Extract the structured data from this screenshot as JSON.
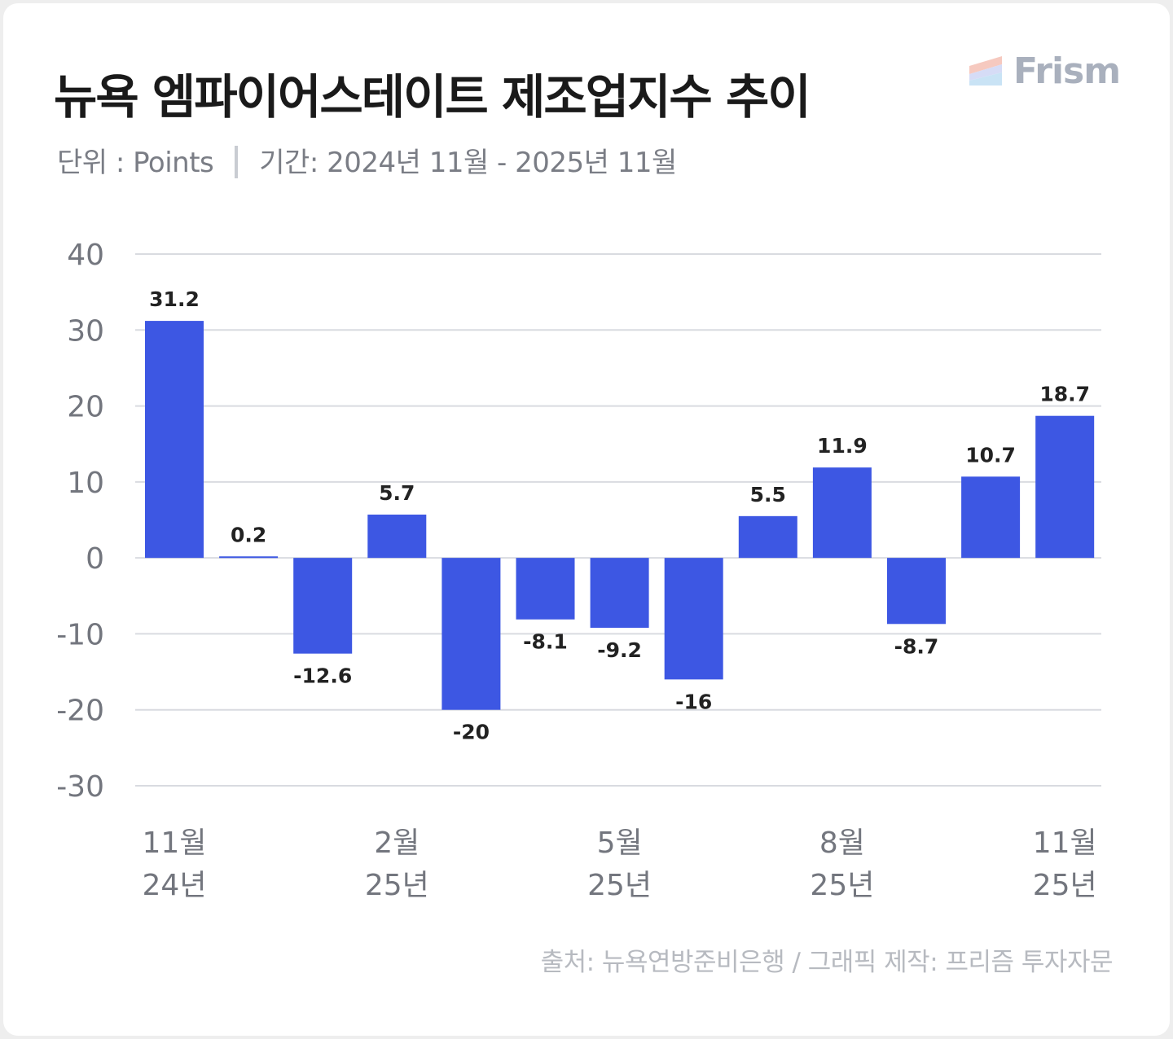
{
  "header": {
    "title": "뉴욕 엠파이어스테이트 제조업지수 추이",
    "unit": "단위 : Points",
    "period": "기간: 2024년 11월 - 2025년 11월"
  },
  "brand": {
    "logo_text": "Frism",
    "logo_icon": "stacked-stripes-icon"
  },
  "footer": {
    "source": "출처: 뉴욕연방준비은행 / 그래픽 제작: 프리즘 투자자문"
  },
  "colors": {
    "bar": "#3d57e3",
    "grid": "#d9dbe0",
    "axis_text": "#73767e",
    "label_text": "#222222"
  },
  "chart_data": {
    "type": "bar",
    "categories": [
      "2024-11",
      "2024-12",
      "2025-01",
      "2025-02",
      "2025-03",
      "2025-04",
      "2025-05",
      "2025-06",
      "2025-07",
      "2025-08",
      "2025-09",
      "2025-10",
      "2025-11"
    ],
    "values": [
      31.2,
      0.2,
      -12.6,
      5.7,
      -20,
      -8.1,
      -9.2,
      -16,
      5.5,
      11.9,
      -8.7,
      10.7,
      18.7
    ],
    "value_labels": [
      "31.2",
      "0.2",
      "-12.6",
      "5.7",
      "-20",
      "-8.1",
      "-9.2",
      "-16",
      "5.5",
      "11.9",
      "-8.7",
      "10.7",
      "18.7"
    ],
    "x_tick_labels": [
      {
        "index": 0,
        "month": "11월",
        "year": "24년"
      },
      {
        "index": 3,
        "month": "2월",
        "year": "25년"
      },
      {
        "index": 6,
        "month": "5월",
        "year": "25년"
      },
      {
        "index": 9,
        "month": "8월",
        "year": "25년"
      },
      {
        "index": 12,
        "month": "11월",
        "year": "25년"
      }
    ],
    "y_ticks": [
      40,
      30,
      20,
      10,
      0,
      -10,
      -20,
      -30
    ],
    "ylim": [
      -30,
      40
    ],
    "grid": true,
    "legend": "none"
  }
}
